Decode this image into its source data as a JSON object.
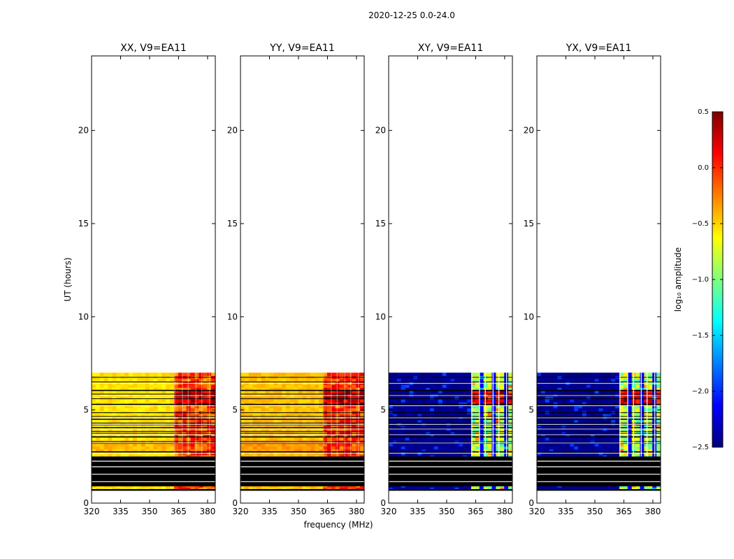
{
  "figure": {
    "suptitle": "2020-12-25 0.0-24.0",
    "xlabel": "frequency (MHz)",
    "ylabel": "UT (hours)"
  },
  "colors": {
    "jet": [
      "#00007f",
      "#0000ff",
      "#007fff",
      "#00ffff",
      "#7fff7f",
      "#ffff00",
      "#ff7f00",
      "#ff0000",
      "#7f0000"
    ],
    "flagged": "#000000",
    "gap": "#ffffff",
    "frame": "#000000"
  },
  "chart_data": {
    "type": "heatmap",
    "colormap": "jet",
    "xlim": [
      320,
      384
    ],
    "ylim": [
      0,
      24
    ],
    "xticks": [
      320,
      335,
      350,
      365,
      380
    ],
    "yticks": [
      0,
      5,
      10,
      15,
      20
    ],
    "data_extent_hours": [
      0.7,
      7.0
    ],
    "flagged_band_hours": [
      0.9,
      2.5
    ],
    "flagged_lines_hours": [
      2.75,
      3.2,
      3.3,
      3.55,
      3.75,
      3.85,
      4.05,
      4.2,
      4.3,
      4.5,
      4.65,
      4.85,
      5.3,
      5.6,
      5.85,
      6.05,
      6.5,
      6.75
    ],
    "rfi_channels_mhz": [
      363,
      367,
      370,
      374,
      377,
      381
    ],
    "series": [
      {
        "name": "XX, V9=EA11",
        "base_log_amp": -0.55,
        "band_log_amp": -0.1,
        "band_start_mhz": 361
      },
      {
        "name": "YY, V9=EA11",
        "base_log_amp": -0.45,
        "band_log_amp": -0.05,
        "band_start_mhz": 361
      },
      {
        "name": "XY, V9=EA11",
        "base_log_amp": -2.45,
        "band_log_amp": -0.9,
        "band_start_mhz": 361
      },
      {
        "name": "YX, V9=EA11",
        "base_log_amp": -2.45,
        "band_log_amp": -0.9,
        "band_start_mhz": 361
      }
    ],
    "colorbar": {
      "label": "log₁₀ amplitude",
      "range": [
        -2.5,
        0.5
      ],
      "ticks": [
        "0.5",
        "0.0",
        "−0.5",
        "−1.0",
        "−1.5",
        "−2.0",
        "−2.5"
      ]
    }
  }
}
